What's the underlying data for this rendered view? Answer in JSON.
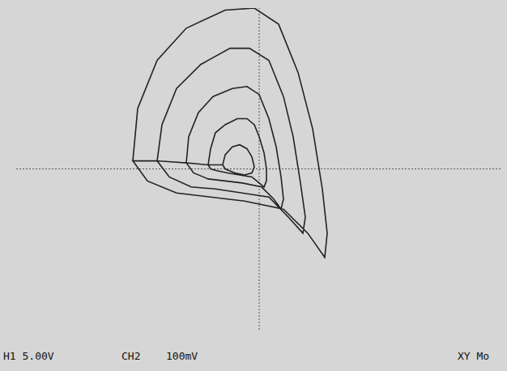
{
  "chart_data": {
    "type": "scatter",
    "annotations": [
      "H1 5.00V",
      "CH2",
      "100mV",
      "XY Mo"
    ],
    "x": [
      -2.6,
      -2.5,
      -2.1,
      -1.5,
      -0.7,
      -0.1,
      0.4,
      0.8,
      1.1,
      1.3,
      1.4,
      1.35,
      1.0,
      0.5,
      -0.3,
      -1.0,
      -1.7,
      -2.3,
      -2.6,
      -2.1,
      -2.0,
      -1.7,
      -1.2,
      -0.6,
      -0.2,
      0.2,
      0.5,
      0.7,
      0.85,
      0.95,
      0.9,
      0.6,
      0.2,
      -0.35,
      -0.9,
      -1.4,
      -1.85,
      -2.1,
      -1.5,
      -1.45,
      -1.25,
      -0.95,
      -0.55,
      -0.25,
      0.0,
      0.2,
      0.35,
      0.45,
      0.5,
      0.45,
      0.3,
      0.05,
      -0.35,
      -0.7,
      -1.05,
      -1.35,
      -1.5,
      -1.05,
      -1.0,
      -0.9,
      -0.7,
      -0.45,
      -0.25,
      -0.1,
      0.0,
      0.1,
      0.15,
      0.15,
      0.1,
      0.0,
      -0.15,
      -0.4,
      -0.65,
      -0.85,
      -1.0,
      -1.05,
      -0.75,
      -0.7,
      -0.55,
      -0.4,
      -0.25,
      -0.15,
      -0.1,
      -0.15,
      -0.3,
      -0.5,
      -0.7,
      -0.75
    ],
    "values": [
      0.2,
      1.5,
      2.7,
      3.5,
      3.95,
      4.0,
      3.6,
      2.4,
      1.0,
      -0.5,
      -1.6,
      -2.2,
      -1.6,
      -1.0,
      -0.8,
      -0.7,
      -0.6,
      -0.3,
      0.2,
      0.2,
      1.1,
      2.0,
      2.6,
      3.0,
      3.0,
      2.7,
      1.8,
      0.8,
      -0.35,
      -1.2,
      -1.6,
      -1.2,
      -0.7,
      -0.6,
      -0.5,
      -0.45,
      -0.2,
      0.2,
      0.15,
      0.8,
      1.4,
      1.8,
      2.0,
      2.05,
      1.85,
      1.25,
      0.55,
      -0.2,
      -0.75,
      -1.0,
      -0.75,
      -0.45,
      -0.35,
      -0.3,
      -0.25,
      -0.1,
      0.15,
      0.1,
      0.5,
      0.9,
      1.1,
      1.25,
      1.25,
      1.1,
      0.8,
      0.4,
      0.0,
      -0.3,
      -0.45,
      -0.35,
      -0.2,
      -0.15,
      -0.1,
      -0.05,
      0.0,
      0.1,
      0.1,
      0.35,
      0.55,
      0.6,
      0.5,
      0.3,
      0.05,
      -0.1,
      -0.15,
      -0.1,
      0.0,
      0.1
    ],
    "xlim": [
      -5,
      5
    ],
    "ylim": [
      -4,
      4
    ],
    "xticks": [
      -5,
      -4,
      -3,
      -2,
      -1,
      0,
      1,
      2,
      3,
      4,
      5
    ],
    "yticks": [
      -4,
      -3,
      -2,
      -1,
      0,
      1,
      2,
      3,
      4
    ],
    "grid": true,
    "tick_labels": false,
    "color": "#222222",
    "marker": "none",
    "line_style": "solid"
  }
}
